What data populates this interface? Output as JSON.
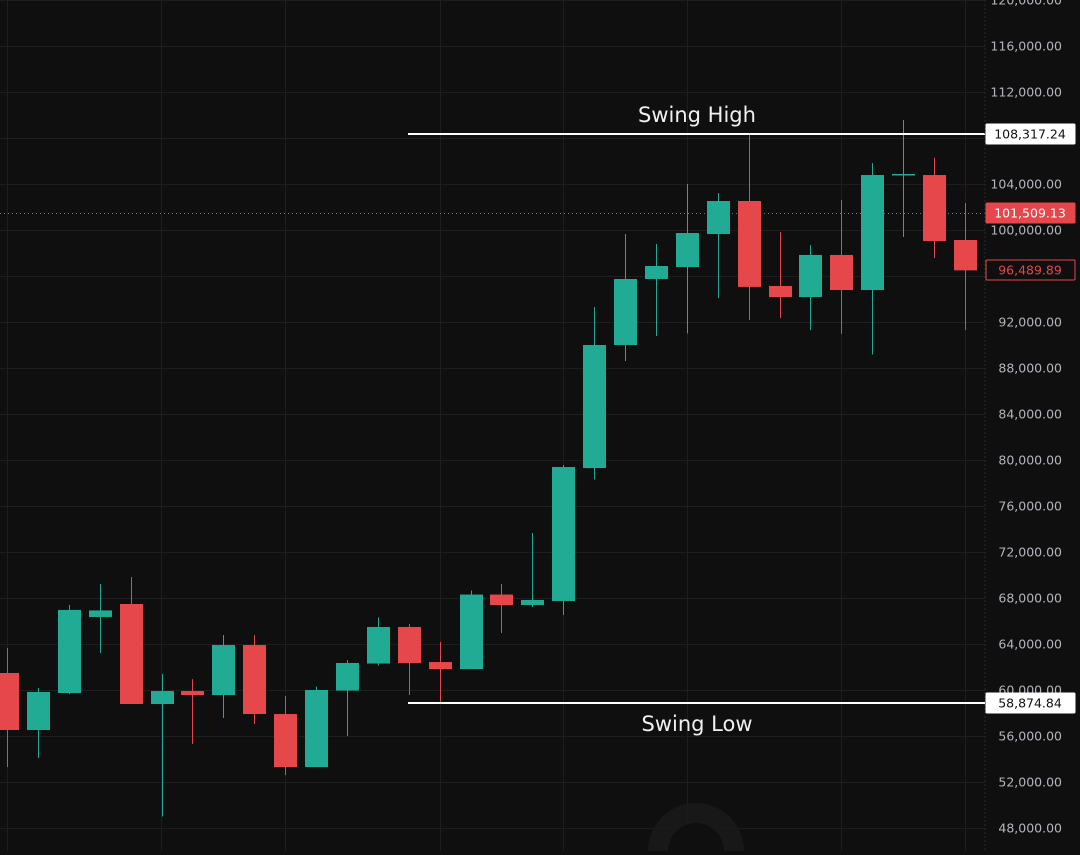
{
  "chart_data": {
    "type": "candlestick",
    "title": "",
    "xlabel": "",
    "ylabel": "",
    "ylim": [
      47000,
      120000
    ],
    "grid": true,
    "colors": {
      "up": "#22ab94",
      "down": "#e5474b",
      "background": "#0f0f0f",
      "grid": "#1e1e1e",
      "axis_text": "#b2b5be",
      "annotation_line": "#ffffff"
    },
    "y_ticks": [
      "120,000.00",
      "116,000.00",
      "112,000.00",
      "104,000.00",
      "100,000.00",
      "92,000.00",
      "88,000.00",
      "84,000.00",
      "80,000.00",
      "76,000.00",
      "72,000.00",
      "68,000.00",
      "64,000.00",
      "60,000.00",
      "56,000.00",
      "52,000.00",
      "48,000.00"
    ],
    "y_tick_values": [
      120000,
      116000,
      112000,
      104000,
      100000,
      92000,
      88000,
      84000,
      80000,
      76000,
      72000,
      68000,
      64000,
      60000,
      56000,
      52000,
      48000
    ],
    "candles": [
      {
        "open": 61480,
        "high": 63650,
        "low": 53300,
        "close": 56520
      },
      {
        "open": 56520,
        "high": 60170,
        "low": 54090,
        "close": 59830
      },
      {
        "open": 59740,
        "high": 67390,
        "low": 59650,
        "close": 66960
      },
      {
        "open": 66350,
        "high": 69220,
        "low": 63220,
        "close": 66920
      },
      {
        "open": 67480,
        "high": 69830,
        "low": 58780,
        "close": 58780
      },
      {
        "open": 58780,
        "high": 61390,
        "low": 49000,
        "close": 59910
      },
      {
        "open": 59910,
        "high": 60950,
        "low": 55300,
        "close": 59560
      },
      {
        "open": 59560,
        "high": 64780,
        "low": 57560,
        "close": 63910
      },
      {
        "open": 63910,
        "high": 64780,
        "low": 57040,
        "close": 57910
      },
      {
        "open": 57910,
        "high": 59480,
        "low": 52600,
        "close": 53300
      },
      {
        "open": 53300,
        "high": 60300,
        "low": 53300,
        "close": 60000
      },
      {
        "open": 59950,
        "high": 62600,
        "low": 56000,
        "close": 62350
      },
      {
        "open": 62300,
        "high": 66300,
        "low": 62120,
        "close": 65480
      },
      {
        "open": 65480,
        "high": 65740,
        "low": 59560,
        "close": 62350
      },
      {
        "open": 62430,
        "high": 64170,
        "low": 58870,
        "close": 61820
      },
      {
        "open": 61820,
        "high": 68650,
        "low": 61820,
        "close": 68300
      },
      {
        "open": 68300,
        "high": 69220,
        "low": 64960,
        "close": 67390
      },
      {
        "open": 67390,
        "high": 73650,
        "low": 67220,
        "close": 67830
      },
      {
        "open": 67740,
        "high": 79560,
        "low": 66520,
        "close": 79390
      },
      {
        "open": 79300,
        "high": 93300,
        "low": 78300,
        "close": 90000
      },
      {
        "open": 90000,
        "high": 99650,
        "low": 88610,
        "close": 95740
      },
      {
        "open": 95740,
        "high": 98780,
        "low": 90780,
        "close": 96870
      },
      {
        "open": 96780,
        "high": 104000,
        "low": 91000,
        "close": 99740
      },
      {
        "open": 99650,
        "high": 103220,
        "low": 94090,
        "close": 102520
      },
      {
        "open": 102520,
        "high": 108320,
        "low": 92170,
        "close": 95050
      },
      {
        "open": 95130,
        "high": 99830,
        "low": 92350,
        "close": 94170
      },
      {
        "open": 94170,
        "high": 98690,
        "low": 91300,
        "close": 97830
      },
      {
        "open": 97830,
        "high": 102610,
        "low": 90960,
        "close": 94780
      },
      {
        "open": 94780,
        "high": 105820,
        "low": 89170,
        "close": 104780
      },
      {
        "open": 104780,
        "high": 109560,
        "low": 99390,
        "close": 104870
      },
      {
        "open": 104780,
        "high": 106280,
        "low": 97560,
        "close": 99040
      },
      {
        "open": 99130,
        "high": 102350,
        "low": 91300,
        "close": 96490
      }
    ],
    "annotations": [
      {
        "label": "Swing High",
        "price": 108317.24,
        "price_label": "108,317.24"
      },
      {
        "label": "Swing Low",
        "price": 58874.84,
        "price_label": "58,874.84"
      }
    ],
    "current_price": {
      "value": 101509.13,
      "label": "101,509.13",
      "color": "#e5474b"
    },
    "last_close": {
      "value": 96489.89,
      "label": "96,489.89",
      "color": "#e5474b"
    }
  }
}
